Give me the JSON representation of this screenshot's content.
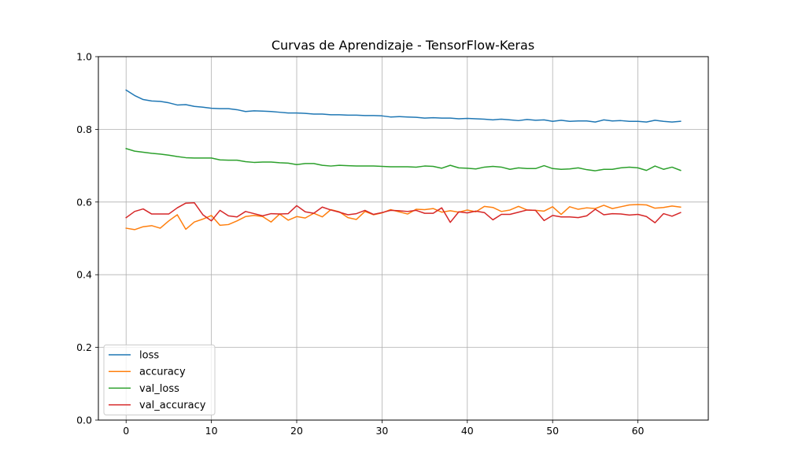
{
  "chart_data": {
    "type": "line",
    "title": "Curvas de Aprendizaje - TensorFlow-Keras",
    "xlabel": "",
    "ylabel": "",
    "xlim": [
      -3.25,
      68.25
    ],
    "ylim": [
      0.0,
      1.0
    ],
    "xticks": [
      0,
      10,
      20,
      30,
      40,
      50,
      60
    ],
    "yticks": [
      0.0,
      0.2,
      0.4,
      0.6,
      0.8,
      1.0
    ],
    "xtick_labels": [
      "0",
      "10",
      "20",
      "30",
      "40",
      "50",
      "60"
    ],
    "ytick_labels": [
      "0.0",
      "0.2",
      "0.4",
      "0.6",
      "0.8",
      "1.0"
    ],
    "grid": true,
    "legend_position": "lower-left",
    "x": [
      0,
      1,
      2,
      3,
      4,
      5,
      6,
      7,
      8,
      9,
      10,
      11,
      12,
      13,
      14,
      15,
      16,
      17,
      18,
      19,
      20,
      21,
      22,
      23,
      24,
      25,
      26,
      27,
      28,
      29,
      30,
      31,
      32,
      33,
      34,
      35,
      36,
      37,
      38,
      39,
      40,
      41,
      42,
      43,
      44,
      45,
      46,
      47,
      48,
      49,
      50,
      51,
      52,
      53,
      54,
      55,
      56,
      57,
      58,
      59,
      60,
      61,
      62,
      63,
      64,
      65
    ],
    "series": [
      {
        "name": "loss",
        "color": "#1f77b4",
        "values": [
          0.908,
          0.893,
          0.882,
          0.878,
          0.877,
          0.873,
          0.867,
          0.868,
          0.863,
          0.861,
          0.858,
          0.857,
          0.857,
          0.854,
          0.849,
          0.851,
          0.85,
          0.849,
          0.847,
          0.845,
          0.845,
          0.844,
          0.842,
          0.842,
          0.84,
          0.84,
          0.839,
          0.839,
          0.838,
          0.838,
          0.837,
          0.834,
          0.835,
          0.834,
          0.833,
          0.831,
          0.832,
          0.831,
          0.831,
          0.829,
          0.83,
          0.829,
          0.828,
          0.826,
          0.828,
          0.826,
          0.824,
          0.827,
          0.825,
          0.826,
          0.822,
          0.825,
          0.822,
          0.823,
          0.823,
          0.82,
          0.826,
          0.823,
          0.824,
          0.822,
          0.822,
          0.82,
          0.825,
          0.822,
          0.82,
          0.822
        ]
      },
      {
        "name": "accuracy",
        "color": "#ff7f0e",
        "values": [
          0.528,
          0.524,
          0.532,
          0.535,
          0.528,
          0.548,
          0.565,
          0.525,
          0.545,
          0.553,
          0.563,
          0.536,
          0.538,
          0.548,
          0.56,
          0.563,
          0.56,
          0.545,
          0.567,
          0.55,
          0.56,
          0.556,
          0.569,
          0.559,
          0.579,
          0.573,
          0.557,
          0.552,
          0.574,
          0.565,
          0.57,
          0.579,
          0.573,
          0.567,
          0.58,
          0.579,
          0.582,
          0.572,
          0.576,
          0.572,
          0.578,
          0.573,
          0.588,
          0.585,
          0.574,
          0.578,
          0.588,
          0.578,
          0.577,
          0.575,
          0.587,
          0.566,
          0.587,
          0.58,
          0.584,
          0.582,
          0.591,
          0.582,
          0.587,
          0.592,
          0.593,
          0.592,
          0.583,
          0.585,
          0.589,
          0.586
        ]
      },
      {
        "name": "val_loss",
        "color": "#2ca02c",
        "values": [
          0.747,
          0.74,
          0.737,
          0.734,
          0.732,
          0.729,
          0.725,
          0.722,
          0.721,
          0.721,
          0.721,
          0.716,
          0.715,
          0.715,
          0.711,
          0.709,
          0.71,
          0.71,
          0.708,
          0.707,
          0.703,
          0.706,
          0.706,
          0.701,
          0.699,
          0.701,
          0.7,
          0.699,
          0.699,
          0.699,
          0.698,
          0.697,
          0.697,
          0.697,
          0.696,
          0.699,
          0.698,
          0.693,
          0.701,
          0.694,
          0.693,
          0.691,
          0.696,
          0.698,
          0.696,
          0.69,
          0.694,
          0.692,
          0.692,
          0.7,
          0.692,
          0.69,
          0.691,
          0.694,
          0.689,
          0.686,
          0.69,
          0.69,
          0.694,
          0.696,
          0.694,
          0.687,
          0.699,
          0.69,
          0.696,
          0.687
        ]
      },
      {
        "name": "val_accuracy",
        "color": "#d62728",
        "values": [
          0.557,
          0.574,
          0.581,
          0.567,
          0.567,
          0.567,
          0.584,
          0.597,
          0.598,
          0.565,
          0.548,
          0.577,
          0.562,
          0.559,
          0.574,
          0.568,
          0.562,
          0.568,
          0.567,
          0.568,
          0.59,
          0.573,
          0.569,
          0.586,
          0.578,
          0.572,
          0.565,
          0.568,
          0.577,
          0.566,
          0.571,
          0.577,
          0.576,
          0.574,
          0.577,
          0.569,
          0.569,
          0.584,
          0.544,
          0.573,
          0.57,
          0.575,
          0.571,
          0.551,
          0.566,
          0.566,
          0.572,
          0.578,
          0.577,
          0.549,
          0.563,
          0.559,
          0.559,
          0.557,
          0.562,
          0.58,
          0.565,
          0.568,
          0.567,
          0.564,
          0.566,
          0.56,
          0.543,
          0.568,
          0.561,
          0.571
        ]
      }
    ]
  }
}
